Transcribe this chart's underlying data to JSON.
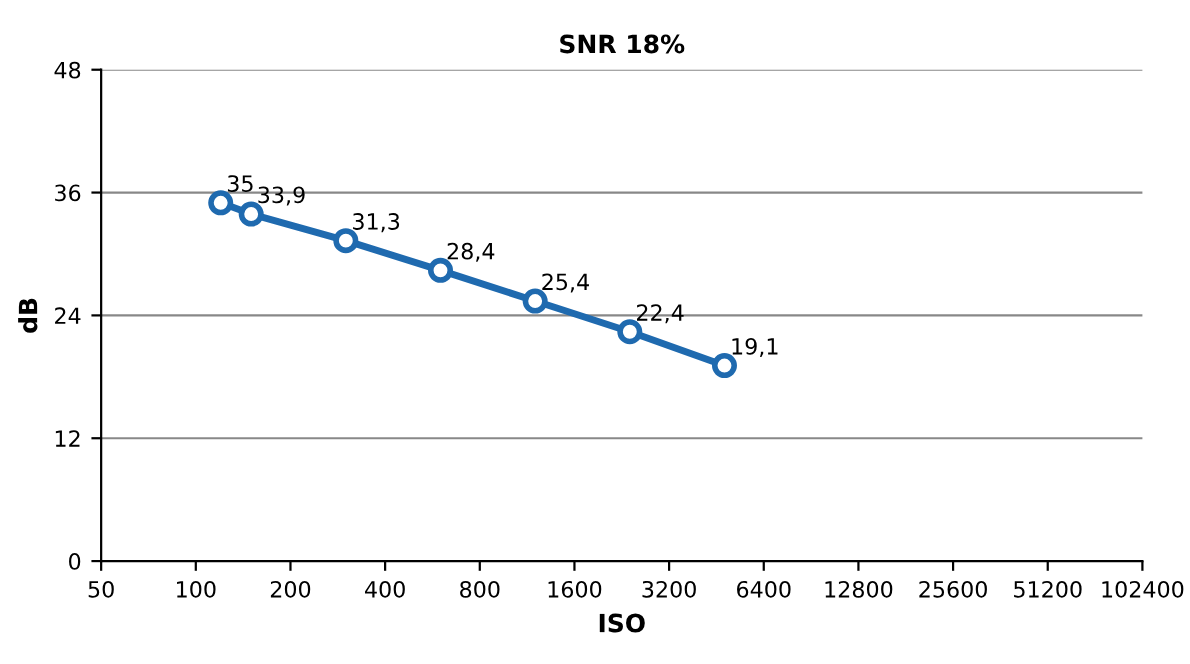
{
  "chart_data": {
    "type": "line",
    "title": "SNR 18%",
    "xlabel": "ISO",
    "ylabel": "dB",
    "x": [
      120,
      150,
      300,
      600,
      1200,
      2400,
      4800
    ],
    "series": [
      {
        "color": "#1f6aaf",
        "values": [
          35,
          33.9,
          31.3,
          28.4,
          25.4,
          22.4,
          19.1
        ],
        "value_labels": [
          "35",
          "33,9",
          "31,3",
          "28,4",
          "25,4",
          "22,4",
          "19,1"
        ]
      }
    ],
    "log": "x",
    "xlim": [
      50,
      102400
    ],
    "xticks": [
      50,
      100,
      200,
      400,
      800,
      1600,
      3200,
      6400,
      12800,
      25600,
      51200,
      102400
    ],
    "ylim": [
      0,
      48
    ],
    "yticks": [
      0,
      12,
      24,
      36,
      48
    ],
    "grid": "y",
    "marker": "circle",
    "line_style": "solid",
    "legend": false
  }
}
